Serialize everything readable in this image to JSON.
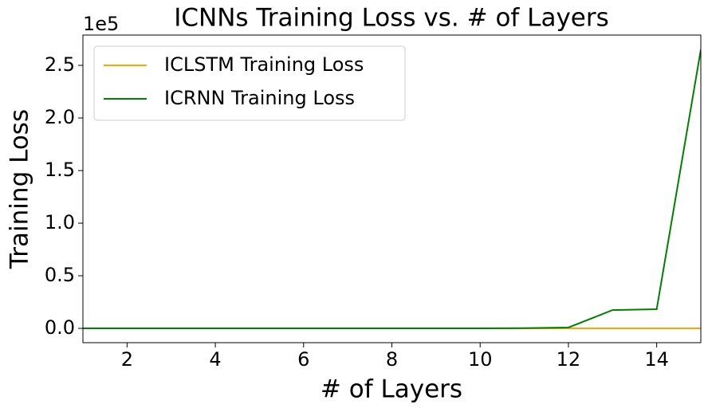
{
  "chart_data": {
    "type": "line",
    "title": "ICNNs Training Loss vs. # of Layers",
    "x_label": "# of Layers",
    "y_label": "Training Loss",
    "y_offset_label": "1e5",
    "x": [
      1,
      2,
      3,
      4,
      5,
      6,
      7,
      8,
      9,
      10,
      11,
      12,
      13,
      14,
      15
    ],
    "series": [
      {
        "name": "ICLSTM Training Loss",
        "color": "#ffa500",
        "values": [
          0,
          0,
          0,
          0,
          0,
          0,
          0,
          0,
          0,
          0,
          0,
          0,
          0,
          0,
          0
        ]
      },
      {
        "name": "ICRNN Training Loss",
        "color": "#008000",
        "values": [
          0,
          0,
          0,
          0,
          0,
          0,
          0,
          0,
          0,
          50,
          200,
          800,
          17400,
          18200,
          265000
        ]
      }
    ],
    "xlim": [
      1,
      15
    ],
    "xticks": [
      2,
      4,
      6,
      8,
      10,
      12,
      14
    ],
    "ylim": [
      -13600,
      278800
    ],
    "yticks": [
      {
        "value": 0,
        "label": "0.0"
      },
      {
        "value": 50000,
        "label": "0.5"
      },
      {
        "value": 100000,
        "label": "1.0"
      },
      {
        "value": 150000,
        "label": "1.5"
      },
      {
        "value": 200000,
        "label": "2.0"
      },
      {
        "value": 250000,
        "label": "2.5"
      }
    ],
    "legend": "upper left",
    "grid": false
  }
}
